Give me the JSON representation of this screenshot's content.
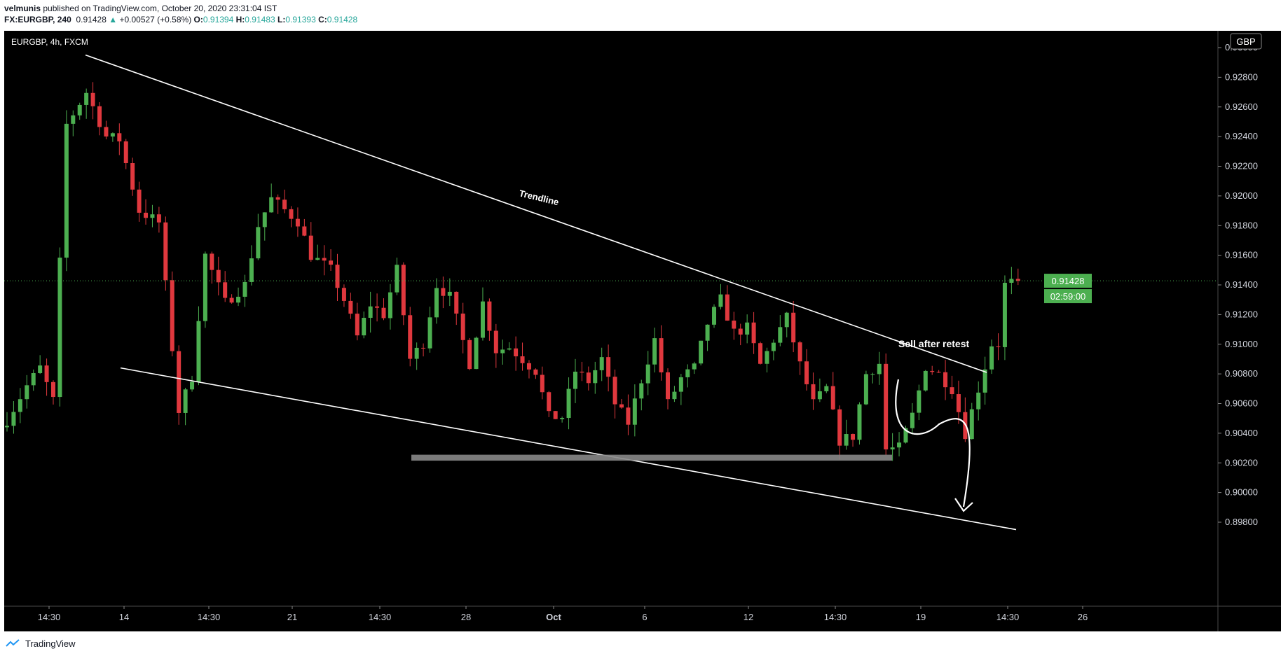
{
  "header": {
    "author": "velmunis",
    "published_text": "published on TradingView.com, October 20, 2020 23:31:04 IST",
    "symbol": "FX:EURGBP, 240",
    "last": "0.91428",
    "change_arrow": "▲",
    "change": "+0.00527 (+0.58%)",
    "o_label": "O:",
    "o": "0.91394",
    "h_label": "H:",
    "h": "0.91483",
    "l_label": "L:",
    "l": "0.91393",
    "c_label": "C:",
    "c": "0.91428"
  },
  "chart_data": {
    "type": "candlestick",
    "title": "EURGBP, 4h, FXCM",
    "currency": "GBP",
    "ylim": [
      0.8974,
      0.9305
    ],
    "y_ticks": [
      "0.93000",
      "0.92800",
      "0.92600",
      "0.92400",
      "0.92200",
      "0.92000",
      "0.91800",
      "0.91600",
      "0.91400",
      "0.91200",
      "0.91000",
      "0.90800",
      "0.90600",
      "0.90400",
      "0.90200",
      "0.90000",
      "0.89800"
    ],
    "x_ticks": [
      "14:30",
      "14",
      "14:30",
      "21",
      "14:30",
      "28",
      "Oct",
      "6",
      "12",
      "14:30",
      "19",
      "14:30",
      "26"
    ],
    "last_price": {
      "value": "0.91428",
      "countdown": "02:59:00"
    },
    "colors": {
      "up": "#4caf50",
      "down": "#e0383e",
      "background": "#000000",
      "lines": "#ffffff",
      "support_zone": "#888888"
    },
    "annotations": {
      "trendline_label": "Trendline",
      "sell_label": "Sell after retest",
      "upper_trendline": [
        [
          0.9295,
          0
        ],
        [
          0.9081,
          86
        ]
      ],
      "lower_trendline": [
        [
          0.9084,
          10
        ],
        [
          0.8975,
          89
        ]
      ],
      "support_zone": [
        0.90215,
        0.90255
      ],
      "support_zone_range": [
        35,
        75
      ]
    },
    "anchors": [
      [
        0,
        0.9049
      ],
      [
        3,
        0.9072
      ],
      [
        5,
        0.9084
      ],
      [
        7,
        0.9062
      ],
      [
        9,
        0.9248
      ],
      [
        12,
        0.927
      ],
      [
        15,
        0.924
      ],
      [
        17,
        0.9238
      ],
      [
        20,
        0.919
      ],
      [
        23,
        0.9182
      ],
      [
        26,
        0.9055
      ],
      [
        28,
        0.9078
      ],
      [
        30,
        0.916
      ],
      [
        33,
        0.9128
      ],
      [
        36,
        0.914
      ],
      [
        38,
        0.918
      ],
      [
        40,
        0.9198
      ],
      [
        44,
        0.9183
      ],
      [
        46,
        0.916
      ],
      [
        49,
        0.915
      ],
      [
        51,
        0.913
      ],
      [
        53,
        0.9105
      ],
      [
        55,
        0.9127
      ],
      [
        57,
        0.912
      ],
      [
        59,
        0.915
      ],
      [
        61,
        0.909
      ],
      [
        63,
        0.9101
      ],
      [
        65,
        0.914
      ],
      [
        67,
        0.9132
      ],
      [
        70,
        0.9087
      ],
      [
        72,
        0.9128
      ],
      [
        74,
        0.9096
      ],
      [
        76,
        0.9098
      ],
      [
        80,
        0.9082
      ],
      [
        82,
        0.9051
      ],
      [
        84,
        0.9051
      ],
      [
        86,
        0.9082
      ],
      [
        88,
        0.9075
      ],
      [
        90,
        0.909
      ],
      [
        92,
        0.906
      ],
      [
        94,
        0.9047
      ],
      [
        96,
        0.9076
      ],
      [
        98,
        0.9103
      ],
      [
        100,
        0.906
      ],
      [
        102,
        0.9077
      ],
      [
        104,
        0.9084
      ],
      [
        106,
        0.9114
      ],
      [
        108,
        0.913
      ],
      [
        110,
        0.9108
      ],
      [
        112,
        0.9111
      ],
      [
        114,
        0.9086
      ],
      [
        116,
        0.9103
      ],
      [
        118,
        0.9118
      ],
      [
        120,
        0.9086
      ],
      [
        122,
        0.906
      ],
      [
        124,
        0.907
      ],
      [
        126,
        0.9035
      ],
      [
        128,
        0.9038
      ],
      [
        130,
        0.908
      ],
      [
        132,
        0.9087
      ],
      [
        133,
        0.9029
      ],
      [
        135,
        0.903
      ],
      [
        137,
        0.9052
      ],
      [
        139,
        0.9085
      ],
      [
        141,
        0.908
      ],
      [
        143,
        0.907
      ],
      [
        145,
        0.904
      ],
      [
        147,
        0.907
      ],
      [
        149,
        0.91
      ],
      [
        150,
        0.91
      ],
      [
        151,
        0.914
      ],
      [
        153,
        0.9143
      ]
    ]
  }
}
